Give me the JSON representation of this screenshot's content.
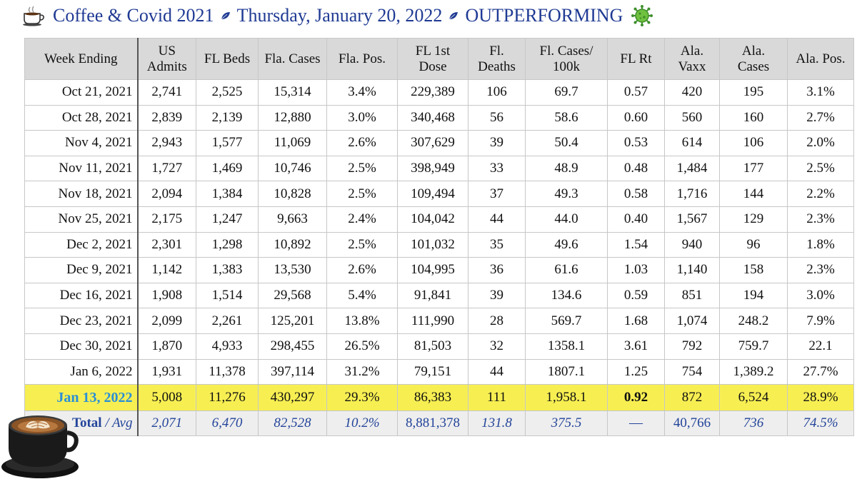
{
  "title": {
    "part1": "Coffee & Covid 2021",
    "part2": "Thursday, January 20, 2022",
    "part3": "OUTPERFORMING",
    "icons": [
      "coffee-cup-icon",
      "leaf-icon",
      "leaf-icon",
      "virus-icon"
    ]
  },
  "table": {
    "headers": {
      "week": "Week Ending",
      "us_admits_1": "US",
      "us_admits_2": "Admits",
      "fl_beds": "FL Beds",
      "fla_cases": "Fla. Cases",
      "fla_pos": "Fla. Pos.",
      "fl_dose_1": "FL 1st",
      "fl_dose_2": "Dose",
      "fl_deaths_1": "Fl.",
      "fl_deaths_2": "Deaths",
      "fl_cases100k_1": "Fl. Cases/",
      "fl_cases100k_2": "100k",
      "fl_rt": "FL Rt",
      "ala_vaxx_1": "Ala.",
      "ala_vaxx_2": "Vaxx",
      "ala_cases_1": "Ala.",
      "ala_cases_2": "Cases",
      "ala_pos": "Ala. Pos."
    },
    "rows": [
      [
        "Oct 21, 2021",
        "2,741",
        "2,525",
        "15,314",
        "3.4%",
        "229,389",
        "106",
        "69.7",
        "0.57",
        "420",
        "195",
        "3.1%"
      ],
      [
        "Oct 28, 2021",
        "2,839",
        "2,139",
        "12,880",
        "3.0%",
        "340,468",
        "56",
        "58.6",
        "0.60",
        "560",
        "160",
        "2.7%"
      ],
      [
        "Nov 4, 2021",
        "2,943",
        "1,577",
        "11,069",
        "2.6%",
        "307,629",
        "39",
        "50.4",
        "0.53",
        "614",
        "106",
        "2.0%"
      ],
      [
        "Nov 11, 2021",
        "1,727",
        "1,469",
        "10,746",
        "2.5%",
        "398,949",
        "33",
        "48.9",
        "0.48",
        "1,484",
        "177",
        "2.5%"
      ],
      [
        "Nov 18, 2021",
        "2,094",
        "1,384",
        "10,828",
        "2.5%",
        "109,494",
        "37",
        "49.3",
        "0.58",
        "1,716",
        "144",
        "2.2%"
      ],
      [
        "Nov 25, 2021",
        "2,175",
        "1,247",
        "9,663",
        "2.4%",
        "104,042",
        "44",
        "44.0",
        "0.40",
        "1,567",
        "129",
        "2.3%"
      ],
      [
        "Dec 2, 2021",
        "2,301",
        "1,298",
        "10,892",
        "2.5%",
        "101,032",
        "35",
        "49.6",
        "1.54",
        "940",
        "96",
        "1.8%"
      ],
      [
        "Dec 9, 2021",
        "1,142",
        "1,383",
        "13,530",
        "2.6%",
        "104,995",
        "36",
        "61.6",
        "1.03",
        "1,140",
        "158",
        "2.3%"
      ],
      [
        "Dec 16, 2021",
        "1,908",
        "1,514",
        "29,568",
        "5.4%",
        "91,841",
        "39",
        "134.6",
        "0.59",
        "851",
        "194",
        "3.0%"
      ],
      [
        "Dec 23, 2021",
        "2,099",
        "2,261",
        "125,201",
        "13.8%",
        "111,990",
        "28",
        "569.7",
        "1.68",
        "1,074",
        "248.2",
        "7.9%"
      ],
      [
        "Dec 30, 2021",
        "1,870",
        "4,933",
        "298,455",
        "26.5%",
        "81,503",
        "32",
        "1358.1",
        "3.61",
        "792",
        "759.7",
        "22.1"
      ],
      [
        "Jan 6, 2022",
        "1,931",
        "11,378",
        "397,114",
        "31.2%",
        "79,151",
        "44",
        "1807.1",
        "1.25",
        "754",
        "1,389.2",
        "27.7%"
      ]
    ],
    "highlight_row": [
      "Jan 13, 2022",
      "5,008",
      "11,276",
      "430,297",
      "29.3%",
      "86,383",
      "111",
      "1,958.1",
      "0.92",
      "872",
      "6,524",
      "28.9%"
    ],
    "total_row": {
      "label_bold": "Total",
      "label_sep": " / ",
      "label_avg": "Avg",
      "values": [
        "2,071",
        "6,470",
        "82,528",
        "10.2%",
        "8,881,378",
        "131.8",
        "375.5",
        "—",
        "40,766",
        "736",
        "74.5%"
      ]
    },
    "colors": {
      "header_bg": "#d9d9d9",
      "highlight_bg": "#f7ef52",
      "highlight_date": "#2a8fd6",
      "total_text": "#23449a",
      "title": "#1f3a93"
    }
  }
}
